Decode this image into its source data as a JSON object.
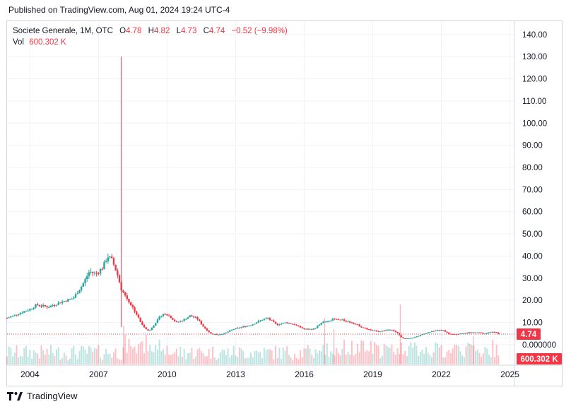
{
  "header": {
    "published": "Published on TradingView.com, Aug 01, 2024 19:24 UTC-4"
  },
  "legend": {
    "symbol": "Societe Generale, 1M, OTC",
    "o_label": "O",
    "o_value": "4.78",
    "h_label": "H",
    "h_value": "4.82",
    "l_label": "L",
    "l_value": "4.73",
    "c_label": "C",
    "c_value": "4.74",
    "change": "−0.52 (−9.98%)",
    "vol_label": "Vol",
    "vol_value": "600.302 K"
  },
  "footer": {
    "logo_text": "TradingView"
  },
  "colors": {
    "up": "#26a69a",
    "down": "#f23645",
    "grid": "#f0f3fa",
    "axis_text": "#131722"
  },
  "chart_data": {
    "type": "candlestick",
    "title": "Societe Generale, 1M, OTC",
    "interval": "1M",
    "x_range": [
      2003.0,
      2025.2
    ],
    "y_range": [
      -8,
      146
    ],
    "y_ticks": [
      0,
      10,
      20,
      30,
      40,
      50,
      60,
      70,
      80,
      90,
      100,
      110,
      120,
      130,
      140
    ],
    "y_tick_labels": [
      "0.000000",
      "10.00",
      "20.00",
      "30.00",
      "40.00",
      "50.00",
      "60.00",
      "70.00",
      "80.00",
      "90.00",
      "100.00",
      "110.00",
      "120.00",
      "130.00",
      "140.00"
    ],
    "x_ticks": [
      2004,
      2007,
      2010,
      2013,
      2016,
      2019,
      2022,
      2025
    ],
    "x_tick_labels": [
      "2004",
      "2007",
      "2010",
      "2013",
      "2016",
      "2019",
      "2022",
      "2025"
    ],
    "last_price": 4.74,
    "last_price_label": "4.74",
    "last_volume_label": "600.302 K",
    "close_path": [
      [
        2003.0,
        12
      ],
      [
        2003.5,
        14
      ],
      [
        2004.0,
        16
      ],
      [
        2004.3,
        18
      ],
      [
        2004.8,
        17
      ],
      [
        2005.3,
        19
      ],
      [
        2005.9,
        21
      ],
      [
        2006.3,
        27
      ],
      [
        2006.6,
        33
      ],
      [
        2006.9,
        32
      ],
      [
        2007.2,
        35
      ],
      [
        2007.4,
        40
      ],
      [
        2007.6,
        38
      ],
      [
        2007.85,
        31
      ],
      [
        2008.0,
        25
      ],
      [
        2008.3,
        20
      ],
      [
        2008.6,
        15
      ],
      [
        2008.9,
        9
      ],
      [
        2009.2,
        6
      ],
      [
        2009.5,
        10
      ],
      [
        2009.8,
        14
      ],
      [
        2010.1,
        13
      ],
      [
        2010.4,
        10
      ],
      [
        2010.7,
        11
      ],
      [
        2011.0,
        13
      ],
      [
        2011.3,
        12
      ],
      [
        2011.6,
        8
      ],
      [
        2011.9,
        5
      ],
      [
        2012.2,
        4.5
      ],
      [
        2012.5,
        5
      ],
      [
        2012.9,
        7
      ],
      [
        2013.3,
        8
      ],
      [
        2013.7,
        9
      ],
      [
        2014.1,
        11
      ],
      [
        2014.4,
        12
      ],
      [
        2014.8,
        9
      ],
      [
        2015.2,
        10
      ],
      [
        2015.6,
        9
      ],
      [
        2016.0,
        7
      ],
      [
        2016.4,
        7
      ],
      [
        2016.8,
        10
      ],
      [
        2017.3,
        11.5
      ],
      [
        2017.7,
        11
      ],
      [
        2018.1,
        10
      ],
      [
        2018.5,
        8
      ],
      [
        2018.9,
        6.5
      ],
      [
        2019.3,
        6
      ],
      [
        2019.8,
        7
      ],
      [
        2020.1,
        5
      ],
      [
        2020.3,
        2.8
      ],
      [
        2020.7,
        3
      ],
      [
        2021.0,
        4
      ],
      [
        2021.4,
        5.5
      ],
      [
        2021.8,
        6.5
      ],
      [
        2022.1,
        6.5
      ],
      [
        2022.3,
        5
      ],
      [
        2022.6,
        4.5
      ],
      [
        2022.9,
        5
      ],
      [
        2023.2,
        5.5
      ],
      [
        2023.6,
        5.5
      ],
      [
        2023.9,
        5
      ],
      [
        2024.2,
        6
      ],
      [
        2024.45,
        5.2
      ],
      [
        2024.58,
        4.74
      ]
    ],
    "volume_spike": {
      "x": 2008.0,
      "high": 130
    }
  }
}
